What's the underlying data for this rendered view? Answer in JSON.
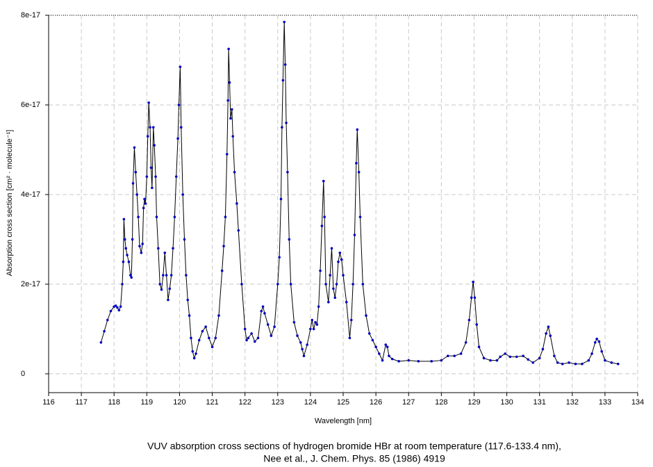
{
  "chart_data": {
    "type": "line",
    "xlabel": "Wavelength [nm]",
    "ylabel": "Absorption cross section [cm² · molecule⁻¹]",
    "caption": [
      "VUV absorption cross sections of hydrogen bromide HBr at room temperature (117.6-133.4 nm),",
      "Nee et al., J. Chem. Phys. 85 (1986) 4919"
    ],
    "xlim": [
      116,
      134
    ],
    "xticks": [
      116,
      117,
      118,
      119,
      120,
      121,
      122,
      123,
      124,
      125,
      126,
      127,
      128,
      129,
      130,
      131,
      132,
      133,
      134
    ],
    "ylim": [
      -4.2e-18,
      8e-17
    ],
    "yticks": [
      0,
      {
        "value": 2e-17,
        "label": "2e-17"
      },
      {
        "value": 4e-17,
        "label": "4e-17"
      },
      {
        "value": 6e-17,
        "label": "6e-17"
      },
      {
        "value": 8e-17,
        "label": "8e-17"
      }
    ],
    "grid": true,
    "color": "#0000c0",
    "x": [
      117.6,
      117.7,
      117.8,
      117.9,
      118.0,
      118.05,
      118.1,
      118.15,
      118.2,
      118.25,
      118.28,
      118.3,
      118.33,
      118.36,
      118.4,
      118.45,
      118.5,
      118.53,
      118.56,
      118.58,
      118.62,
      118.66,
      118.7,
      118.74,
      118.78,
      118.83,
      118.87,
      118.9,
      118.93,
      118.96,
      119.0,
      119.03,
      119.06,
      119.1,
      119.13,
      119.16,
      119.2,
      119.23,
      119.27,
      119.3,
      119.35,
      119.4,
      119.45,
      119.5,
      119.55,
      119.6,
      119.65,
      119.7,
      119.75,
      119.8,
      119.85,
      119.9,
      119.95,
      119.98,
      120.02,
      120.05,
      120.1,
      120.15,
      120.2,
      120.25,
      120.3,
      120.35,
      120.4,
      120.45,
      120.5,
      120.6,
      120.7,
      120.8,
      120.9,
      121.0,
      121.1,
      121.2,
      121.3,
      121.35,
      121.4,
      121.45,
      121.48,
      121.5,
      121.53,
      121.56,
      121.6,
      121.63,
      121.68,
      121.75,
      121.8,
      121.9,
      122.0,
      122.05,
      122.1,
      122.2,
      122.3,
      122.4,
      122.5,
      122.55,
      122.6,
      122.7,
      122.8,
      122.9,
      123.0,
      123.05,
      123.1,
      123.13,
      123.16,
      123.2,
      123.23,
      123.26,
      123.3,
      123.35,
      123.4,
      123.5,
      123.6,
      123.7,
      123.75,
      123.8,
      123.9,
      124.0,
      124.05,
      124.1,
      124.15,
      124.2,
      124.25,
      124.3,
      124.35,
      124.4,
      124.43,
      124.47,
      124.55,
      124.6,
      124.65,
      124.7,
      124.75,
      124.8,
      124.85,
      124.9,
      124.95,
      125.0,
      125.1,
      125.2,
      125.25,
      125.3,
      125.35,
      125.4,
      125.43,
      125.48,
      125.52,
      125.6,
      125.7,
      125.8,
      125.9,
      126.0,
      126.1,
      126.2,
      126.3,
      126.35,
      126.4,
      126.5,
      126.7,
      127.0,
      127.3,
      127.7,
      128.0,
      128.2,
      128.4,
      128.6,
      128.75,
      128.85,
      128.92,
      128.97,
      129.02,
      129.08,
      129.15,
      129.3,
      129.5,
      129.7,
      129.8,
      129.95,
      130.1,
      130.3,
      130.5,
      130.65,
      130.8,
      131.0,
      131.1,
      131.2,
      131.27,
      131.33,
      131.45,
      131.55,
      131.7,
      131.9,
      132.1,
      132.3,
      132.5,
      132.6,
      132.7,
      132.75,
      132.82,
      132.9,
      133.0,
      133.2,
      133.4
    ],
    "values": [
      7e-18,
      9.5e-18,
      1.2e-17,
      1.4e-17,
      1.5e-17,
      1.52e-17,
      1.48e-17,
      1.42e-17,
      1.5e-17,
      2e-17,
      2.5e-17,
      3.45e-17,
      3e-17,
      2.8e-17,
      2.65e-17,
      2.5e-17,
      2.2e-17,
      2.15e-17,
      3e-17,
      4.25e-17,
      5.05e-17,
      4.5e-17,
      4e-17,
      3.5e-17,
      2.85e-17,
      2.7e-17,
      2.9e-17,
      3.7e-17,
      3.9e-17,
      3.8e-17,
      4.4e-17,
      5.3e-17,
      6.05e-17,
      5.5e-17,
      4.6e-17,
      4.15e-17,
      5.5e-17,
      5.1e-17,
      4.4e-17,
      3.5e-17,
      2.8e-17,
      2e-17,
      1.88e-17,
      2.2e-17,
      2.7e-17,
      2.2e-17,
      1.65e-17,
      1.9e-17,
      2.2e-17,
      2.8e-17,
      3.5e-17,
      4.4e-17,
      5.25e-17,
      6e-17,
      6.85e-17,
      5.5e-17,
      4e-17,
      3e-17,
      2.2e-17,
      1.65e-17,
      1.3e-17,
      8e-18,
      5e-18,
      3.5e-18,
      4.5e-18,
      7.5e-18,
      9.5e-18,
      1.05e-17,
      8e-18,
      6e-18,
      8e-18,
      1.3e-17,
      2.3e-17,
      2.85e-17,
      3.5e-17,
      4.9e-17,
      6.1e-17,
      7.25e-17,
      6.5e-17,
      5.7e-17,
      5.9e-17,
      5.3e-17,
      4.5e-17,
      3.8e-17,
      3.2e-17,
      2e-17,
      1e-17,
      7.5e-18,
      8e-18,
      9e-18,
      7.2e-18,
      8e-18,
      1.4e-17,
      1.5e-17,
      1.35e-17,
      1.1e-17,
      8.5e-18,
      1.05e-17,
      2e-17,
      2.6e-17,
      3.9e-17,
      5.5e-17,
      6.55e-17,
      7.85e-17,
      6.9e-17,
      5.6e-17,
      4.5e-17,
      3e-17,
      2e-17,
      1.15e-17,
      8.5e-18,
      7e-18,
      5.5e-18,
      4e-18,
      6.5e-18,
      1e-17,
      1.2e-17,
      1e-17,
      1.15e-17,
      1.1e-17,
      1.5e-17,
      2.3e-17,
      3.3e-17,
      4.3e-17,
      3.5e-17,
      2e-17,
      1.6e-17,
      2.2e-17,
      2.8e-17,
      1.9e-17,
      1.7e-17,
      2e-17,
      2.5e-17,
      2.7e-17,
      2.55e-17,
      2.2e-17,
      1.6e-17,
      8e-18,
      1.2e-17,
      2e-17,
      3.1e-17,
      4.7e-17,
      5.45e-17,
      4.5e-17,
      3.5e-17,
      2e-17,
      1.3e-17,
      9e-18,
      7.5e-18,
      6e-18,
      4.5e-18,
      3e-18,
      6.5e-18,
      6e-18,
      4e-18,
      3.3e-18,
      2.8e-18,
      3e-18,
      2.8e-18,
      2.8e-18,
      3e-18,
      4e-18,
      4e-18,
      4.5e-18,
      7e-18,
      1.2e-17,
      1.7e-17,
      2.05e-17,
      1.7e-17,
      1.1e-17,
      6e-18,
      3.5e-18,
      3e-18,
      3e-18,
      3.8e-18,
      4.5e-18,
      3.8e-18,
      3.8e-18,
      4e-18,
      3.2e-18,
      2.5e-18,
      3.5e-18,
      5.5e-18,
      9e-18,
      1.05e-17,
      8.5e-18,
      4e-18,
      2.5e-18,
      2.2e-18,
      2.5e-18,
      2.2e-18,
      2.2e-18,
      3e-18,
      4.5e-18,
      7e-18,
      7.8e-18,
      7.2e-18,
      5e-18,
      3e-18,
      2.5e-18,
      2.2e-18
    ]
  }
}
